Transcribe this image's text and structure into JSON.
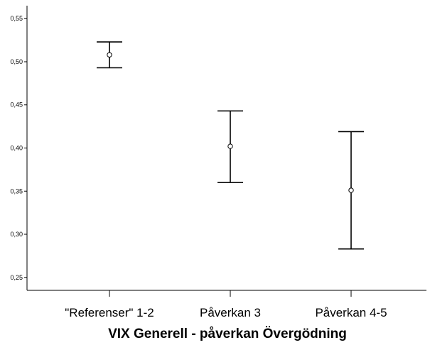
{
  "chart_data": {
    "type": "errorbar",
    "title": "",
    "xlabel": "VIX Generell - påverkan Övergödning",
    "ylabel": "",
    "categories": [
      "\"Referenser\" 1-2",
      "Påverkan 3",
      "Påverkan 4-5"
    ],
    "mean": [
      0.508,
      0.402,
      0.351
    ],
    "upper": [
      0.523,
      0.443,
      0.419
    ],
    "lower": [
      0.493,
      0.36,
      0.283
    ],
    "ylim": [
      0.235,
      0.565
    ],
    "yticks": [
      0.25,
      0.3,
      0.35,
      0.4,
      0.45,
      0.5,
      0.55
    ],
    "ytick_labels": [
      "0,25",
      "0,30",
      "0,35",
      "0,40",
      "0,45",
      "0,50",
      "0,55"
    ],
    "grid": false,
    "legend": "none"
  }
}
